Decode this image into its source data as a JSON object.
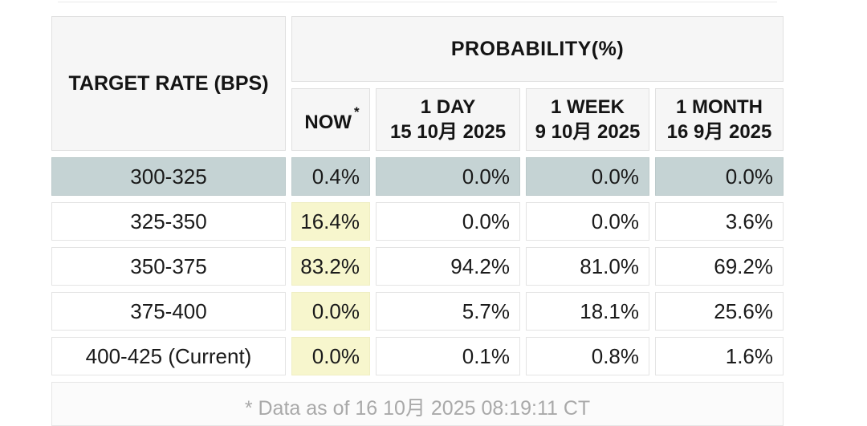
{
  "table": {
    "header": {
      "target_rate_label": "TARGET RATE (BPS)",
      "probability_label": "PROBABILITY(%)",
      "now_label": "NOW",
      "now_sup": "*",
      "columns": [
        {
          "label": "1 DAY",
          "date": "15 10月 2025"
        },
        {
          "label": "1 WEEK",
          "date": "9 10月 2025"
        },
        {
          "label": "1 MONTH",
          "date": "16 9月 2025"
        }
      ]
    },
    "rows": [
      {
        "range": "300-325",
        "now": "0.4%",
        "day": "0.0%",
        "week": "0.0%",
        "month": "0.0%",
        "highlighted": true,
        "now_highlighted": false
      },
      {
        "range": "325-350",
        "now": "16.4%",
        "day": "0.0%",
        "week": "0.0%",
        "month": "3.6%",
        "highlighted": false,
        "now_highlighted": true
      },
      {
        "range": "350-375",
        "now": "83.2%",
        "day": "94.2%",
        "week": "81.0%",
        "month": "69.2%",
        "highlighted": false,
        "now_highlighted": true
      },
      {
        "range": "375-400",
        "now": "0.0%",
        "day": "5.7%",
        "week": "18.1%",
        "month": "25.6%",
        "highlighted": false,
        "now_highlighted": true
      },
      {
        "range": "400-425 (Current)",
        "now": "0.0%",
        "day": "0.1%",
        "week": "0.8%",
        "month": "1.6%",
        "highlighted": false,
        "now_highlighted": true
      }
    ],
    "footnote": "* Data as of 16 10月 2025 08:19:11 CT"
  },
  "colors": {
    "selected_row_highlight": "#c5d3d4",
    "now_column_highlight": "#f7f6cd",
    "header_background": "#f6f6f6",
    "cell_border": "#e4e4e4",
    "footnote_text": "#a9a9a9",
    "text": "#1a1a1a"
  },
  "chart_data": {
    "type": "table",
    "title": "PROBABILITY(%)",
    "columns": [
      "TARGET RATE (BPS)",
      "NOW *",
      "1 DAY 15 10月 2025",
      "1 WEEK 9 10月 2025",
      "1 MONTH 16 9月 2025"
    ],
    "rows": [
      [
        "300-325",
        0.4,
        0.0,
        0.0,
        0.0
      ],
      [
        "325-350",
        16.4,
        0.0,
        0.0,
        3.6
      ],
      [
        "350-375",
        83.2,
        94.2,
        81.0,
        69.2
      ],
      [
        "375-400",
        0.0,
        5.7,
        18.1,
        25.6
      ],
      [
        "400-425 (Current)",
        0.0,
        0.1,
        0.8,
        1.6
      ]
    ],
    "units": "percent",
    "highlighted_row": "300-325",
    "footnote": "* Data as of 16 10月 2025 08:19:11 CT"
  }
}
